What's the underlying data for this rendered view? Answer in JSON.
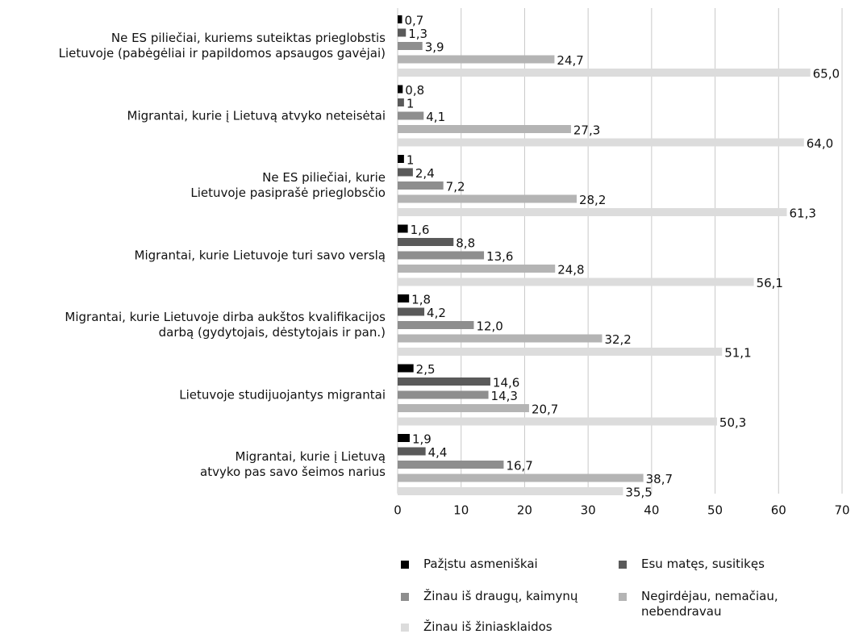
{
  "chart_data": {
    "type": "hbar",
    "categories": [
      "Ne ES piliečiai, kuriems suteiktas prieglobstis\nLietuvoje (pabėgėliai ir papildomos apsaugos gavėjai)",
      "Migrantai, kurie į Lietuvą atvyko neteisėtai",
      "Ne ES piliečiai, kurie\nLietuvoje pasiprašė prieglobsčio",
      "Migrantai, kurie Lietuvoje turi savo verslą",
      "Migrantai, kurie Lietuvoje dirba aukštos kvalifikacijos\ndarbą (gydytojais, dėstytojais ir pan.)",
      "Lietuvoje studijuojantys migrantai",
      "Migrantai, kurie į Lietuvą\natvyko pas savo šeimos narius"
    ],
    "series": [
      {
        "name": "Pažįstu asmeniškai",
        "color": "#000000",
        "values": [
          0.7,
          0.8,
          1,
          1.6,
          1.8,
          2.5,
          1.9
        ],
        "value_labels": [
          "0,7",
          "0,8",
          "1",
          "1,6",
          "1,8",
          "2,5",
          "1,9"
        ]
      },
      {
        "name": "Esu matęs, susitikęs",
        "color": "#5a5a5a",
        "values": [
          1.3,
          1,
          2.4,
          8.8,
          4.2,
          14.6,
          4.4
        ],
        "value_labels": [
          "1,3",
          "1",
          "2,4",
          "8,8",
          "4,2",
          "14,6",
          "4,4"
        ]
      },
      {
        "name": "Žinau iš draugų, kaimynų",
        "color": "#8e8e8e",
        "values": [
          3.9,
          4.1,
          7.2,
          13.6,
          12.0,
          14.3,
          16.7
        ],
        "value_labels": [
          "3,9",
          "4,1",
          "7,2",
          "13,6",
          "12,0",
          "14,3",
          "16,7"
        ]
      },
      {
        "name": "Negirdėjau, nemačiau,\nnebendravau",
        "color": "#b4b4b4",
        "values": [
          24.7,
          27.3,
          28.2,
          24.8,
          32.2,
          20.7,
          38.7
        ],
        "value_labels": [
          "24,7",
          "27,3",
          "28,2",
          "24,8",
          "32,2",
          "20,7",
          "38,7"
        ]
      },
      {
        "name": "Žinau iš žiniasklaidos",
        "color": "#dcdcdc",
        "values": [
          65.0,
          64.0,
          61.3,
          56.1,
          51.1,
          50.3,
          35.5
        ],
        "value_labels": [
          "65,0",
          "64,0",
          "61,3",
          "56,1",
          "51,1",
          "50,3",
          "35,5"
        ]
      }
    ],
    "xlim": [
      0,
      70
    ],
    "xticks": [
      0,
      10,
      20,
      30,
      40,
      50,
      60,
      70
    ],
    "grid": true
  }
}
